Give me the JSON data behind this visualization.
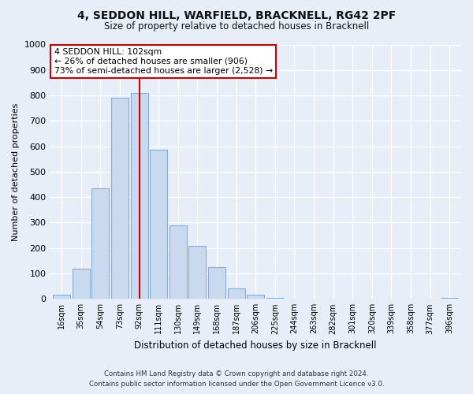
{
  "title": "4, SEDDON HILL, WARFIELD, BRACKNELL, RG42 2PF",
  "subtitle": "Size of property relative to detached houses in Bracknell",
  "xlabel": "Distribution of detached houses by size in Bracknell",
  "ylabel": "Number of detached properties",
  "bar_labels": [
    "16sqm",
    "35sqm",
    "54sqm",
    "73sqm",
    "92sqm",
    "111sqm",
    "130sqm",
    "149sqm",
    "168sqm",
    "187sqm",
    "206sqm",
    "225sqm",
    "244sqm",
    "263sqm",
    "282sqm",
    "301sqm",
    "320sqm",
    "339sqm",
    "358sqm",
    "377sqm",
    "396sqm"
  ],
  "bar_values": [
    15,
    120,
    435,
    790,
    810,
    585,
    290,
    210,
    125,
    40,
    15,
    5,
    2,
    1,
    0,
    0,
    0,
    0,
    0,
    0,
    5
  ],
  "bar_color": "#c9d9ee",
  "bar_edge_color": "#8aadd4",
  "vline_x": 4.0,
  "vline_color": "#cc0000",
  "annotation_line1": "4 SEDDON HILL: 102sqm",
  "annotation_line2": "← 26% of detached houses are smaller (906)",
  "annotation_line3": "73% of semi-detached houses are larger (2,528) →",
  "annotation_box_color": "#ffffff",
  "annotation_box_edge": "#cc0000",
  "ylim": [
    0,
    1000
  ],
  "yticks": [
    0,
    100,
    200,
    300,
    400,
    500,
    600,
    700,
    800,
    900,
    1000
  ],
  "footer_line1": "Contains HM Land Registry data © Crown copyright and database right 2024.",
  "footer_line2": "Contains public sector information licensed under the Open Government Licence v3.0.",
  "bg_color": "#e8eef8",
  "plot_bg_color": "#e8eef8",
  "grid_color": "#ffffff"
}
